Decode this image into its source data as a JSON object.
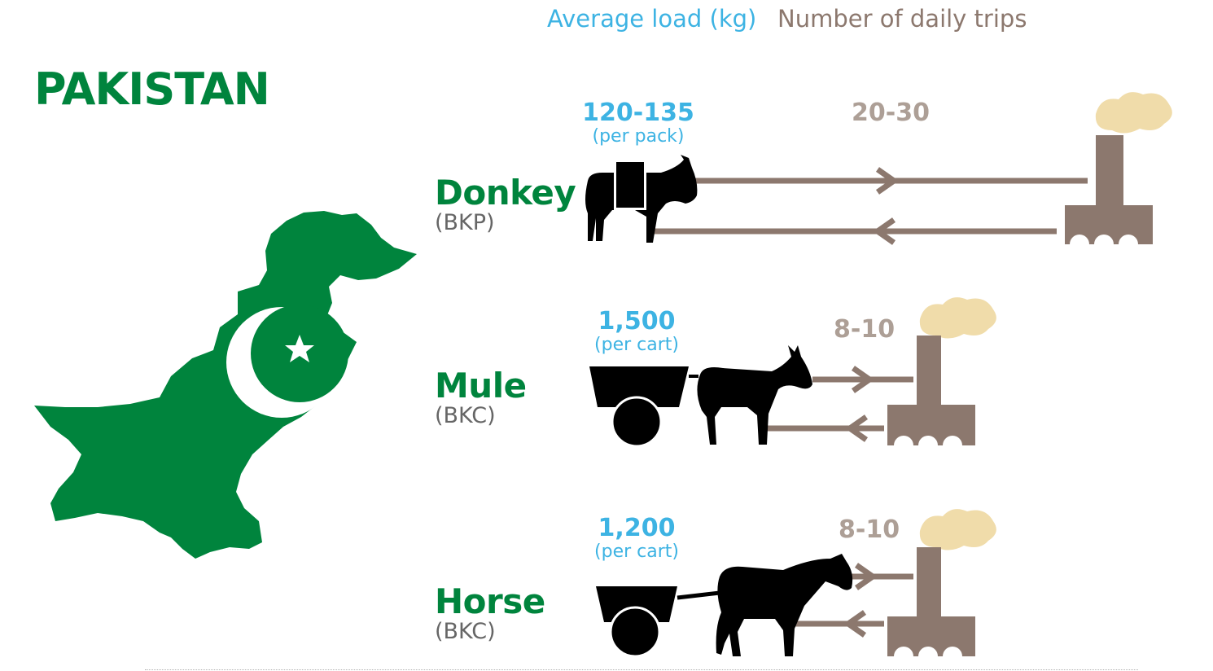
{
  "headers": {
    "load": "Average load (kg)",
    "trips": "Number of daily trips"
  },
  "country": "PAKISTAN",
  "animals": [
    {
      "name": "Donkey",
      "code": "(BKP)",
      "load": "120-135",
      "load_unit": "(per pack)",
      "trips": "20-30"
    },
    {
      "name": "Mule",
      "code": "(BKC)",
      "load": "1,500",
      "load_unit": "(per cart)",
      "trips": "8-10"
    },
    {
      "name": "Horse",
      "code": "(BKC)",
      "load": "1,200",
      "load_unit": "(per cart)",
      "trips": "8-10"
    }
  ],
  "icons": [
    "pakistan-map-flag",
    "pack-donkey-silhouette",
    "mule-cart-silhouette",
    "horse-cart-silhouette",
    "kiln-chimney-icon",
    "arrow-right-icon",
    "arrow-left-icon"
  ],
  "colors": {
    "green": "#00843d",
    "blue": "#3db3e3",
    "brown": "#8c786e",
    "smoke": "#f0dcaa",
    "tan": "#ad9f96"
  }
}
